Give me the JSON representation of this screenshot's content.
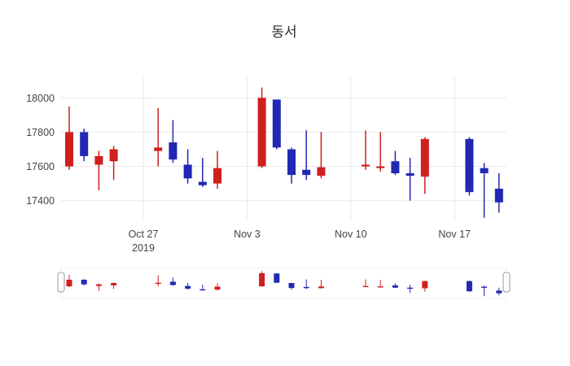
{
  "title": "동서",
  "chart_data": {
    "type": "candlestick",
    "title": "동서",
    "increasing_color": "#d01f1f",
    "decreasing_color": "#2128b4",
    "grid_color": "#e8e8e8",
    "tick_color": "#444444",
    "y_ticks": [
      17400,
      17600,
      17800,
      18000
    ],
    "y_range": [
      17280,
      18120
    ],
    "x_ticks": [
      {
        "date": "2019-10-27",
        "label": "Oct 27",
        "sublabel": "2019"
      },
      {
        "date": "2019-11-03",
        "label": "Nov 3",
        "sublabel": ""
      },
      {
        "date": "2019-11-10",
        "label": "Nov 10",
        "sublabel": ""
      },
      {
        "date": "2019-11-17",
        "label": "Nov 17",
        "sublabel": ""
      }
    ],
    "rangeslider": true,
    "legend_position": "none",
    "grid": true,
    "candles": [
      {
        "date": "2019-10-22",
        "open": 17600,
        "high": 17950,
        "low": 17580,
        "close": 17800
      },
      {
        "date": "2019-10-23",
        "open": 17800,
        "high": 17820,
        "low": 17630,
        "close": 17660
      },
      {
        "date": "2019-10-24",
        "open": 17610,
        "high": 17690,
        "low": 17460,
        "close": 17660
      },
      {
        "date": "2019-10-25",
        "open": 17630,
        "high": 17720,
        "low": 17520,
        "close": 17700
      },
      {
        "date": "2019-10-28",
        "open": 17690,
        "high": 17940,
        "low": 17600,
        "close": 17710
      },
      {
        "date": "2019-10-29",
        "open": 17740,
        "high": 17870,
        "low": 17620,
        "close": 17640
      },
      {
        "date": "2019-10-30",
        "open": 17610,
        "high": 17700,
        "low": 17500,
        "close": 17530
      },
      {
        "date": "2019-10-31",
        "open": 17510,
        "high": 17650,
        "low": 17480,
        "close": 17490
      },
      {
        "date": "2019-11-01",
        "open": 17500,
        "high": 17690,
        "low": 17470,
        "close": 17590
      },
      {
        "date": "2019-11-04",
        "open": 17600,
        "high": 18060,
        "low": 17590,
        "close": 18000
      },
      {
        "date": "2019-11-05",
        "open": 17990,
        "high": 17990,
        "low": 17700,
        "close": 17710
      },
      {
        "date": "2019-11-06",
        "open": 17700,
        "high": 17710,
        "low": 17500,
        "close": 17550
      },
      {
        "date": "2019-11-07",
        "open": 17580,
        "high": 17810,
        "low": 17520,
        "close": 17550
      },
      {
        "date": "2019-11-08",
        "open": 17545,
        "high": 17800,
        "low": 17530,
        "close": 17595
      },
      {
        "date": "2019-11-11",
        "open": 17600,
        "high": 17810,
        "low": 17580,
        "close": 17610
      },
      {
        "date": "2019-11-12",
        "open": 17590,
        "high": 17800,
        "low": 17570,
        "close": 17600
      },
      {
        "date": "2019-11-13",
        "open": 17630,
        "high": 17690,
        "low": 17550,
        "close": 17560
      },
      {
        "date": "2019-11-14",
        "open": 17560,
        "high": 17650,
        "low": 17400,
        "close": 17545
      },
      {
        "date": "2019-11-15",
        "open": 17540,
        "high": 17770,
        "low": 17440,
        "close": 17760
      },
      {
        "date": "2019-11-18",
        "open": 17760,
        "high": 17770,
        "low": 17430,
        "close": 17450
      },
      {
        "date": "2019-11-19",
        "open": 17590,
        "high": 17620,
        "low": 17300,
        "close": 17560
      },
      {
        "date": "2019-11-20",
        "open": 17470,
        "high": 17560,
        "low": 17330,
        "close": 17390
      }
    ]
  }
}
